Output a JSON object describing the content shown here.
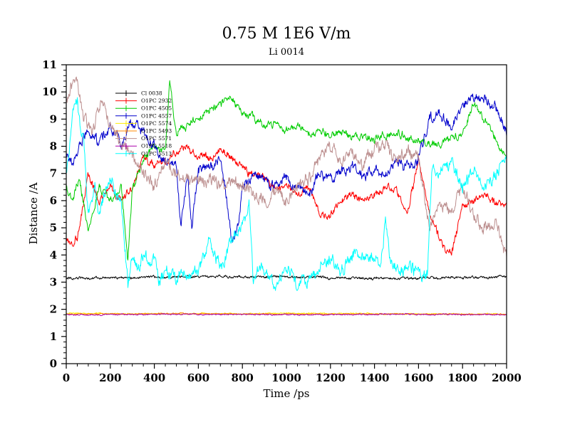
{
  "chart_data": {
    "type": "line",
    "title": "0.75 M 1E6 V/m",
    "subtitle": "Li 0014",
    "xlabel": "Time /ps",
    "ylabel": "Distance /A",
    "xlim": [
      0,
      2000
    ],
    "ylim": [
      0,
      11
    ],
    "xticks": [
      0,
      200,
      400,
      600,
      800,
      1000,
      1200,
      1400,
      1600,
      1800,
      2000
    ],
    "yticks": [
      0,
      1,
      2,
      3,
      4,
      5,
      6,
      7,
      8,
      9,
      10,
      11
    ],
    "legend_position": "top-left",
    "series": [
      {
        "name": "Cl 0038",
        "color": "#000000",
        "noise": 0.05,
        "x": [
          0,
          200,
          400,
          600,
          800,
          1000,
          1200,
          1400,
          1600,
          1800,
          2000
        ],
        "y": [
          3.15,
          3.15,
          3.2,
          3.2,
          3.2,
          3.2,
          3.15,
          3.15,
          3.15,
          3.15,
          3.2
        ]
      },
      {
        "name": "O1PC 2932",
        "color": "#ff0000",
        "noise": 0.15,
        "x": [
          0,
          30,
          50,
          100,
          150,
          200,
          250,
          300,
          350,
          400,
          450,
          500,
          550,
          600,
          650,
          700,
          750,
          800,
          850,
          900,
          950,
          1000,
          1050,
          1100,
          1150,
          1200,
          1250,
          1300,
          1350,
          1400,
          1450,
          1500,
          1550,
          1600,
          1650,
          1700,
          1750,
          1800,
          1850,
          1900,
          1950,
          2000
        ],
        "y": [
          4.6,
          4.4,
          4.6,
          7.0,
          6.0,
          6.5,
          6.0,
          6.5,
          7.5,
          7.3,
          7.5,
          7.8,
          8.0,
          7.6,
          7.5,
          7.9,
          7.6,
          7.2,
          7.0,
          6.8,
          6.5,
          6.5,
          6.3,
          6.5,
          5.5,
          5.5,
          6.0,
          6.3,
          6.0,
          6.2,
          6.5,
          6.3,
          5.5,
          7.5,
          5.5,
          4.5,
          4.0,
          5.8,
          6.0,
          6.2,
          6.0,
          5.8
        ]
      },
      {
        "name": "O1PC 4505",
        "color": "#00cc00",
        "noise": 0.15,
        "x": [
          0,
          30,
          60,
          100,
          150,
          200,
          250,
          280,
          300,
          350,
          400,
          450,
          470,
          500,
          550,
          600,
          650,
          700,
          750,
          800,
          850,
          900,
          950,
          1000,
          1050,
          1100,
          1200,
          1300,
          1400,
          1500,
          1600,
          1700,
          1800,
          1850,
          1900,
          1950,
          2000
        ],
        "y": [
          6.5,
          6.0,
          6.8,
          4.8,
          6.5,
          6.0,
          6.5,
          3.8,
          6.5,
          7.5,
          8.0,
          7.8,
          10.5,
          8.5,
          8.8,
          9.0,
          9.3,
          9.6,
          9.8,
          9.2,
          9.0,
          8.7,
          8.8,
          8.6,
          8.7,
          8.5,
          8.5,
          8.4,
          8.3,
          8.5,
          8.2,
          8.1,
          8.5,
          9.5,
          9.0,
          8.3,
          7.5
        ]
      },
      {
        "name": "O1PC 4557",
        "color": "#0000cc",
        "noise": 0.2,
        "x": [
          0,
          30,
          60,
          100,
          150,
          200,
          250,
          300,
          350,
          400,
          450,
          500,
          520,
          550,
          570,
          600,
          650,
          700,
          730,
          750,
          780,
          800,
          850,
          900,
          950,
          1000,
          1050,
          1100,
          1150,
          1200,
          1250,
          1300,
          1350,
          1400,
          1450,
          1500,
          1550,
          1600,
          1650,
          1700,
          1750,
          1800,
          1850,
          1900,
          1950,
          2000
        ],
        "y": [
          7.7,
          7.3,
          8.0,
          8.5,
          8.2,
          8.8,
          8.0,
          9.0,
          8.5,
          8.0,
          7.5,
          7.2,
          5.0,
          7.0,
          5.0,
          7.0,
          7.3,
          7.5,
          6.0,
          4.5,
          5.0,
          6.5,
          7.0,
          6.8,
          6.5,
          6.8,
          6.5,
          6.3,
          7.0,
          6.8,
          7.0,
          7.2,
          6.8,
          7.2,
          7.0,
          7.5,
          7.2,
          7.5,
          9.0,
          9.2,
          8.8,
          9.5,
          9.8,
          9.8,
          9.5,
          8.5
        ]
      },
      {
        "name": "O1PC 5574",
        "color": "#ffee00",
        "noise": 0.025,
        "x": [
          0,
          500,
          1000,
          1500,
          2000
        ],
        "y": [
          1.85,
          1.83,
          1.85,
          1.83,
          1.82
        ]
      },
      {
        "name": "O1PC 5493",
        "color": "#ff8800",
        "noise": 0.025,
        "x": [
          0,
          500,
          1000,
          1500,
          2000
        ],
        "y": [
          1.82,
          1.84,
          1.82,
          1.83,
          1.82
        ]
      },
      {
        "name": "O1PC 5571",
        "color": "#bc8f8f",
        "noise": 0.25,
        "x": [
          0,
          40,
          80,
          120,
          160,
          200,
          250,
          300,
          350,
          400,
          450,
          500,
          550,
          600,
          650,
          700,
          750,
          800,
          850,
          900,
          950,
          1000,
          1050,
          1100,
          1150,
          1200,
          1250,
          1300,
          1350,
          1400,
          1450,
          1500,
          1550,
          1600,
          1650,
          1700,
          1750,
          1800,
          1850,
          1900,
          1950,
          2000
        ],
        "y": [
          9.5,
          10.5,
          9.0,
          8.5,
          9.5,
          8.8,
          8.0,
          7.5,
          7.0,
          6.5,
          7.5,
          7.0,
          6.8,
          6.5,
          6.8,
          6.5,
          6.8,
          6.5,
          6.2,
          6.0,
          6.5,
          6.0,
          6.5,
          6.8,
          7.5,
          8.0,
          7.5,
          7.8,
          7.2,
          8.0,
          8.0,
          7.5,
          7.8,
          7.5,
          5.0,
          6.0,
          5.5,
          6.5,
          5.5,
          5.0,
          5.2,
          3.8
        ]
      },
      {
        "name": "O1PC 5518",
        "color": "#aa00aa",
        "noise": 0.025,
        "x": [
          0,
          500,
          1000,
          1500,
          2000
        ],
        "y": [
          1.8,
          1.82,
          1.8,
          1.82,
          1.8
        ]
      },
      {
        "name": "O1PC 5513",
        "color": "#00ffff",
        "noise": 0.25,
        "x": [
          0,
          30,
          50,
          80,
          100,
          130,
          150,
          200,
          250,
          280,
          300,
          330,
          350,
          400,
          420,
          450,
          500,
          550,
          600,
          650,
          700,
          750,
          800,
          830,
          850,
          870,
          900,
          950,
          1000,
          1050,
          1100,
          1150,
          1200,
          1250,
          1300,
          1350,
          1400,
          1430,
          1450,
          1470,
          1500,
          1550,
          1600,
          1640,
          1660,
          1700,
          1750,
          1800,
          1850,
          1900,
          1950,
          2000
        ],
        "y": [
          7.0,
          9.0,
          9.5,
          8.0,
          5.5,
          6.5,
          5.5,
          6.8,
          6.0,
          3.0,
          4.0,
          3.5,
          4.0,
          3.8,
          3.0,
          3.5,
          3.3,
          3.2,
          3.3,
          4.5,
          3.5,
          4.5,
          5.0,
          6.0,
          3.0,
          3.5,
          3.5,
          3.0,
          3.5,
          3.0,
          3.0,
          3.5,
          3.8,
          3.5,
          4.0,
          3.8,
          4.0,
          3.8,
          5.3,
          4.0,
          3.5,
          3.5,
          3.3,
          3.2,
          7.0,
          7.0,
          7.5,
          6.5,
          7.0,
          6.5,
          7.0,
          7.5
        ]
      }
    ]
  }
}
